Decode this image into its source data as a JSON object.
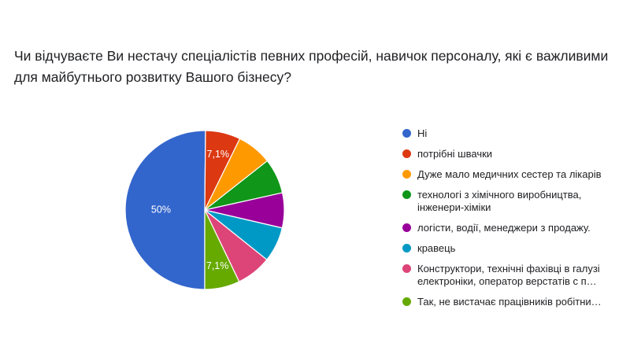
{
  "question": {
    "title": "Чи відчуваєте Ви нестачу спеціалістів певних професій, навичок персоналу, які є важливими для майбутнього розвитку Вашого бізнесу?"
  },
  "chart_data": {
    "type": "pie",
    "start_angle_deg": 90,
    "direction": "clockwise",
    "legend_position": "right",
    "series": [
      {
        "name": "Ні",
        "value": 50,
        "label": "50%",
        "color": "#3366cc"
      },
      {
        "name": "потрібні швачки",
        "value": 7.1,
        "label": "7,1%",
        "color": "#dc3912"
      },
      {
        "name": "Дуже мало медичних сестер та лікарів",
        "value": 7.1,
        "label": "",
        "color": "#ff9900"
      },
      {
        "name": "технологі з хімічного виробництва, інженери-хіміки",
        "value": 7.1,
        "label": "",
        "color": "#109618"
      },
      {
        "name": "логісти, водії, менеджери з продажу.",
        "value": 7.1,
        "label": "",
        "color": "#990099"
      },
      {
        "name": "кравець",
        "value": 7.1,
        "label": "",
        "color": "#0099c6"
      },
      {
        "name": "Конструктори, технічні фахівці в галузі електроніки, оператор верстатів с п…",
        "value": 7.1,
        "label": "",
        "color": "#dd4477"
      },
      {
        "name": "Так, не вистачає працівників робітни…",
        "value": 7.1,
        "label": "7,1%",
        "color": "#66aa00"
      }
    ]
  }
}
